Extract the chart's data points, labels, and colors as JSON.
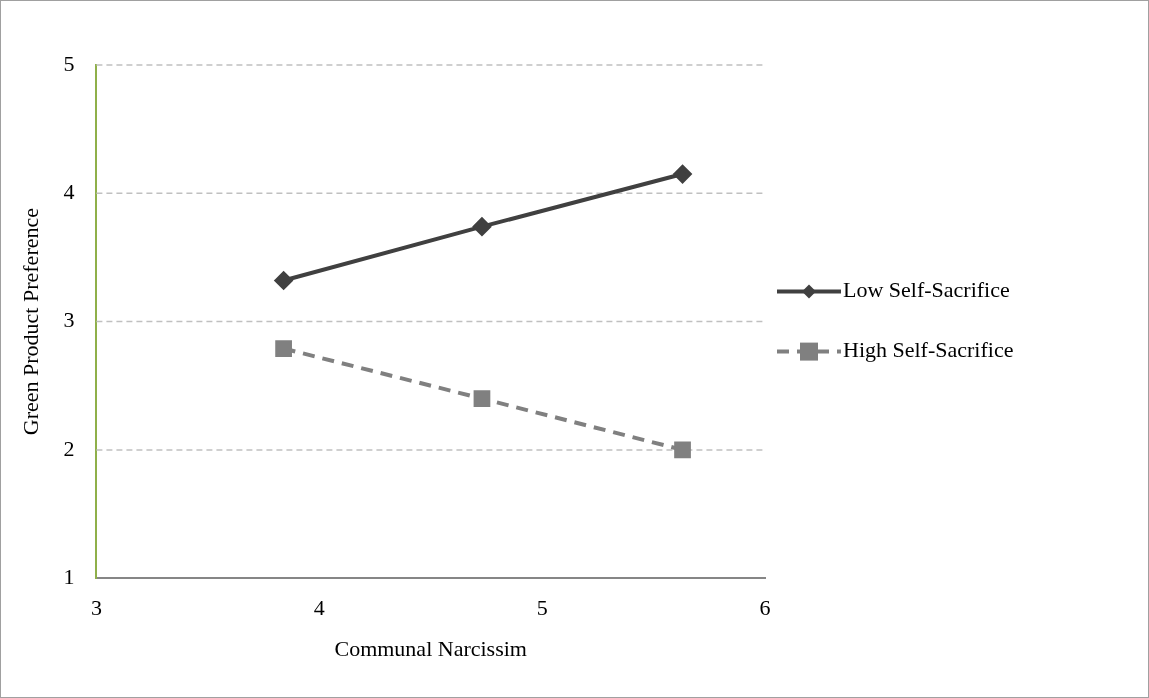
{
  "chart_data": {
    "type": "line",
    "xlabel": "Communal Narcissim",
    "ylabel": "Green Product Preference",
    "x": [
      3.84,
      4.73,
      5.63
    ],
    "series": [
      {
        "name": "Low Self-Sacrifice",
        "color": "#404040",
        "values": [
          3.32,
          3.74,
          4.15
        ],
        "marker": "diamond",
        "line_style": "solid"
      },
      {
        "name": "High Self-Sacrifice",
        "color": "#808080",
        "values": [
          2.79,
          2.4,
          2.0
        ],
        "marker": "square",
        "line_style": "dashed"
      }
    ],
    "xlim": [
      3,
      6
    ],
    "xticks": [
      3,
      4,
      5,
      6
    ],
    "ylim": [
      1,
      5
    ],
    "yticks": [
      1,
      2,
      3,
      4,
      5
    ],
    "grid": "y",
    "legend": "right"
  }
}
